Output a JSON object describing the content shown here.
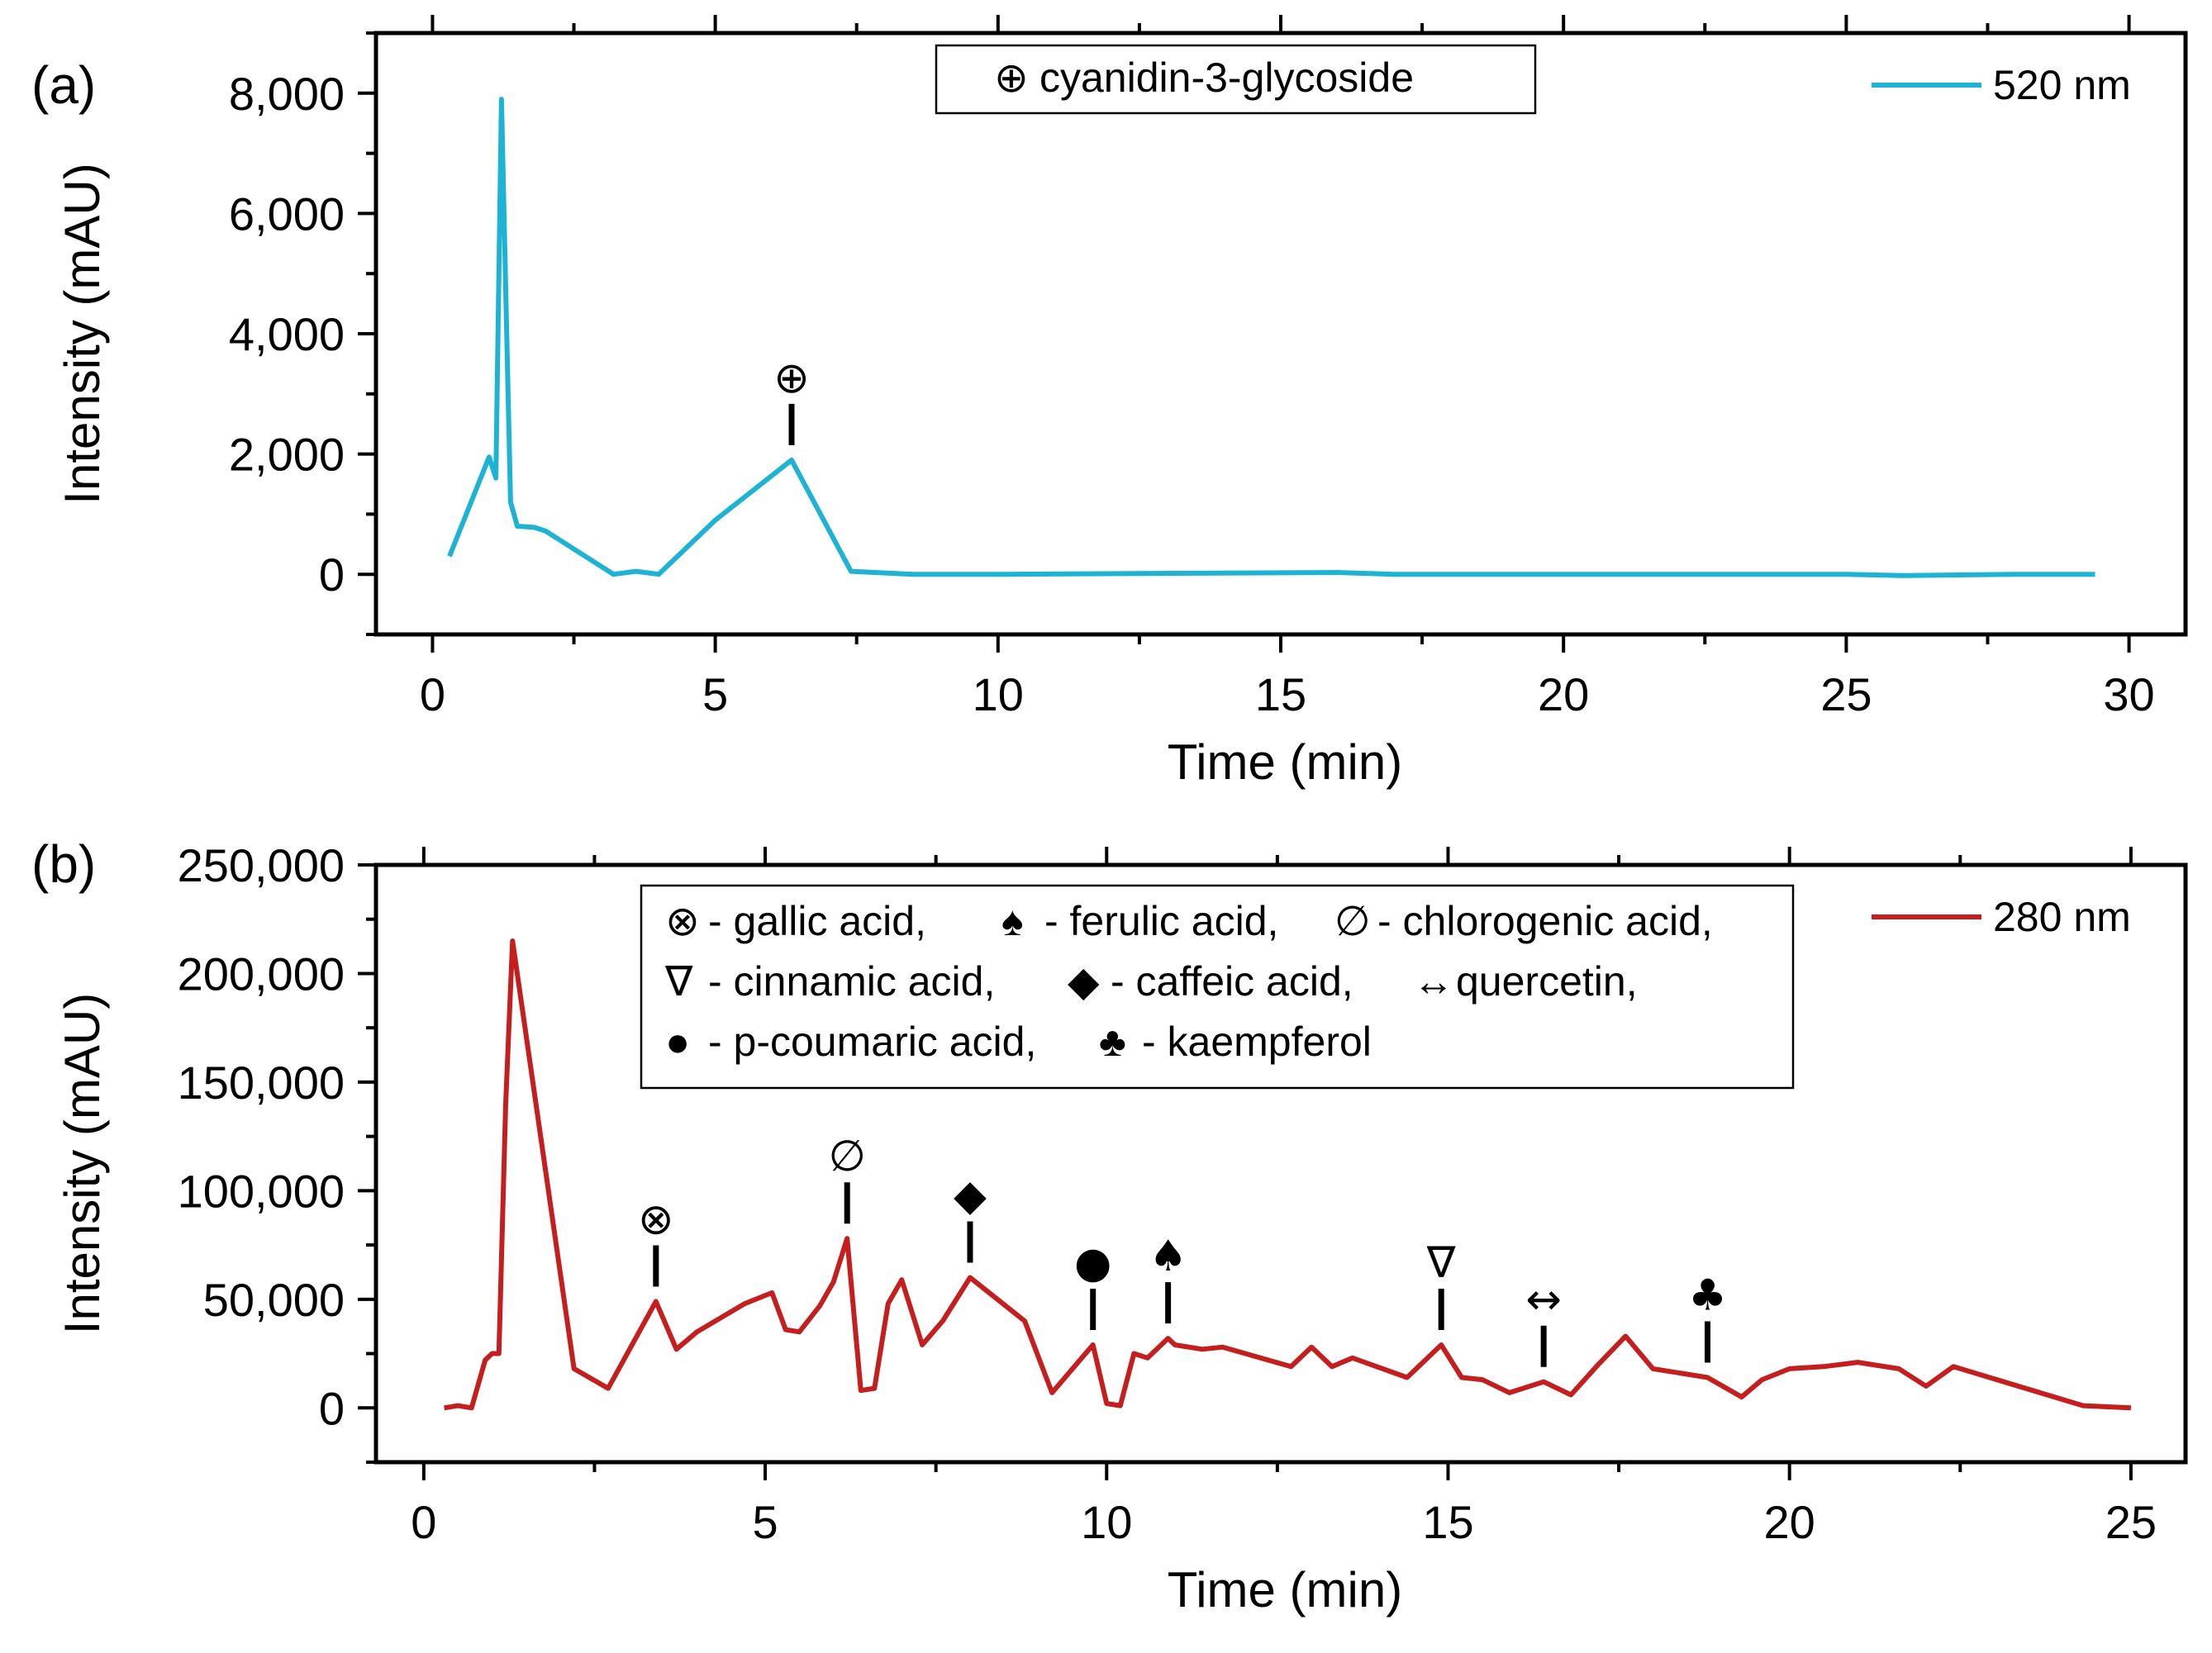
{
  "chart_data": [
    {
      "type": "line",
      "panel_label": "(a)",
      "xlabel": "Time (min)",
      "ylabel": "Intensity (mAU)",
      "xlim": [
        -1,
        31
      ],
      "ylim": [
        -1000,
        9000
      ],
      "x_ticks": [
        0,
        5,
        10,
        15,
        20,
        25,
        30
      ],
      "y_ticks": [
        0,
        2000,
        4000,
        6000,
        8000
      ],
      "y_tick_labels": [
        "0",
        "2,000",
        "4,000",
        "6,000",
        "8,000"
      ],
      "legend_position": "top-right",
      "series": [
        {
          "name": "520 nm",
          "color": "#1fb3d3",
          "x": [
            0.3,
            1.0,
            1.12,
            1.22,
            1.3,
            1.38,
            1.5,
            1.8,
            2.0,
            2.2,
            3.2,
            3.6,
            4.0,
            5.0,
            6.35,
            7.4,
            8.5,
            10.0,
            16.0,
            17.0,
            25.0,
            26.0,
            28.0,
            29.4
          ],
          "y": [
            300,
            1950,
            1600,
            7900,
            4500,
            1200,
            800,
            780,
            720,
            600,
            0,
            50,
            0,
            900,
            1900,
            50,
            0,
            0,
            30,
            0,
            0,
            -20,
            0,
            0
          ]
        }
      ],
      "legend_box": {
        "text": "cyanidin-3-glycoside",
        "marker": "⊕"
      },
      "annotations": [
        {
          "glyph": "⊕",
          "x": 6.35,
          "y": 1900
        }
      ]
    },
    {
      "type": "line",
      "panel_label": "(b)",
      "xlabel": "Time (min)",
      "ylabel": "Intensity (mAU)",
      "xlim": [
        -0.7,
        25.8
      ],
      "ylim": [
        -25000,
        250000
      ],
      "x_ticks": [
        0,
        5,
        10,
        15,
        20,
        25
      ],
      "y_ticks": [
        0,
        50000,
        100000,
        150000,
        200000,
        250000
      ],
      "y_tick_labels": [
        "0",
        "50,000",
        "100,000",
        "150,000",
        "200,000",
        "250,000"
      ],
      "legend_position": "top-right",
      "series": [
        {
          "name": "280 nm",
          "color": "#c41e1e",
          "x": [
            0.3,
            0.5,
            0.7,
            0.9,
            1.0,
            1.1,
            1.2,
            1.3,
            2.2,
            2.7,
            3.4,
            3.7,
            4.0,
            4.7,
            5.1,
            5.3,
            5.5,
            5.8,
            6.0,
            6.2,
            6.4,
            6.6,
            6.8,
            7.0,
            7.3,
            7.6,
            8.0,
            8.8,
            9.2,
            9.8,
            10.0,
            10.2,
            10.4,
            10.6,
            10.9,
            11.0,
            11.4,
            11.7,
            12.7,
            13.0,
            13.3,
            13.6,
            14.4,
            14.9,
            15.2,
            15.5,
            15.9,
            16.4,
            16.8,
            17.2,
            17.6,
            18.0,
            18.8,
            19.3,
            19.6,
            20.0,
            20.5,
            21.0,
            21.6,
            22.0,
            22.4,
            24.3,
            25.0
          ],
          "y": [
            0,
            1000,
            0,
            22000,
            25000,
            25000,
            140000,
            215000,
            18000,
            9000,
            49000,
            27000,
            35000,
            48000,
            53000,
            36000,
            35000,
            47000,
            58000,
            78000,
            8000,
            9000,
            48000,
            59000,
            29000,
            40000,
            60000,
            40000,
            7000,
            29000,
            2000,
            1000,
            25000,
            23000,
            32000,
            29000,
            27000,
            28000,
            19000,
            28000,
            19000,
            23000,
            14000,
            29000,
            14000,
            13000,
            7000,
            12000,
            6000,
            20000,
            33000,
            18000,
            14000,
            5000,
            13000,
            18000,
            19000,
            21000,
            18000,
            10000,
            19000,
            1000,
            0
          ]
        }
      ],
      "legend_box": {
        "lines": [
          [
            {
              "glyph": "⊗",
              "text": "- gallic acid,"
            },
            {
              "glyph": "♠",
              "text": "- ferulic acid,"
            },
            {
              "glyph": "∅",
              "text": "- chlorogenic acid,"
            }
          ],
          [
            {
              "glyph": "∇",
              "text": "- cinnamic acid,"
            },
            {
              "glyph": "◆",
              "text": "- caffeic acid,"
            },
            {
              "glyph": "↔",
              "text": "quercetin,"
            }
          ],
          [
            {
              "glyph": "●",
              "text": "- p-coumaric acid,"
            },
            {
              "glyph": "♣",
              "text": "- kaempferol"
            }
          ]
        ]
      },
      "annotations": [
        {
          "glyph": "⊗",
          "x": 3.4,
          "y": 49000
        },
        {
          "glyph": "∅",
          "x": 6.2,
          "y": 78000
        },
        {
          "glyph": "◆",
          "x": 8.0,
          "y": 60000
        },
        {
          "glyph": "●",
          "x": 9.8,
          "y": 29000
        },
        {
          "glyph": "♠",
          "x": 10.9,
          "y": 32000
        },
        {
          "glyph": "∇",
          "x": 14.9,
          "y": 29000
        },
        {
          "glyph": "↔",
          "x": 16.4,
          "y": 12000
        },
        {
          "glyph": "♣",
          "x": 18.8,
          "y": 14000
        }
      ]
    }
  ]
}
